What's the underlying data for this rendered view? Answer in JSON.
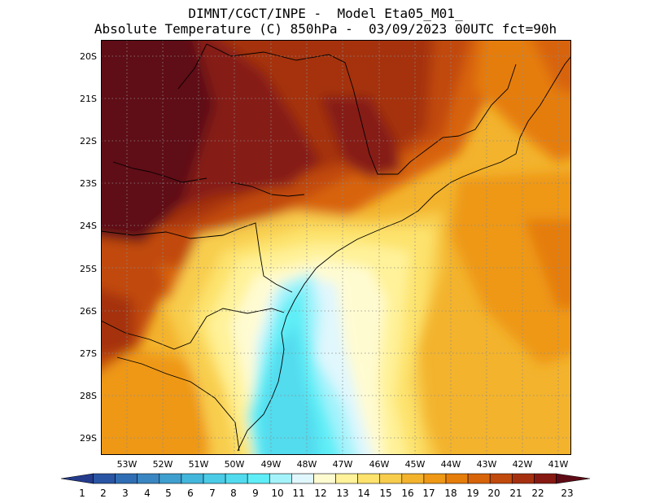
{
  "title": {
    "line1": "DIMNT/CGCT/INPE -  Model Eta05_M01_",
    "line2": "Absolute Temperature (C) 850hPa -  03/09/2023 00UTC fct=90h"
  },
  "map": {
    "lat_labels": [
      "20S",
      "21S",
      "22S",
      "23S",
      "24S",
      "25S",
      "26S",
      "27S",
      "28S",
      "29S"
    ],
    "lon_labels": [
      "53W",
      "52W",
      "51W",
      "50W",
      "49W",
      "48W",
      "47W",
      "46W",
      "45W",
      "44W",
      "43W",
      "42W",
      "41W"
    ],
    "lat_range": [
      -29.4,
      -19.6
    ],
    "lon_range": [
      -53.7,
      -40.4
    ]
  },
  "colorbar": {
    "labels": [
      "1",
      "2",
      "3",
      "4",
      "5",
      "6",
      "7",
      "8",
      "9",
      "10",
      "11",
      "12",
      "13",
      "14",
      "15",
      "16",
      "17",
      "18",
      "19",
      "20",
      "21",
      "22",
      "23"
    ],
    "colors": [
      "#243b8c",
      "#2a55a4",
      "#2f6eb4",
      "#3a86c2",
      "#3f9fcf",
      "#43b6dc",
      "#4bcbe6",
      "#52dbee",
      "#5feef7",
      "#a4f3fb",
      "#e0f7fd",
      "#fffbd1",
      "#fff29a",
      "#fde36d",
      "#f8cd4d",
      "#f3b32d",
      "#ee9815",
      "#e57d0a",
      "#d8640a",
      "#c14a0d",
      "#a53010",
      "#861a12",
      "#5e0b16"
    ],
    "unit": "C"
  }
}
